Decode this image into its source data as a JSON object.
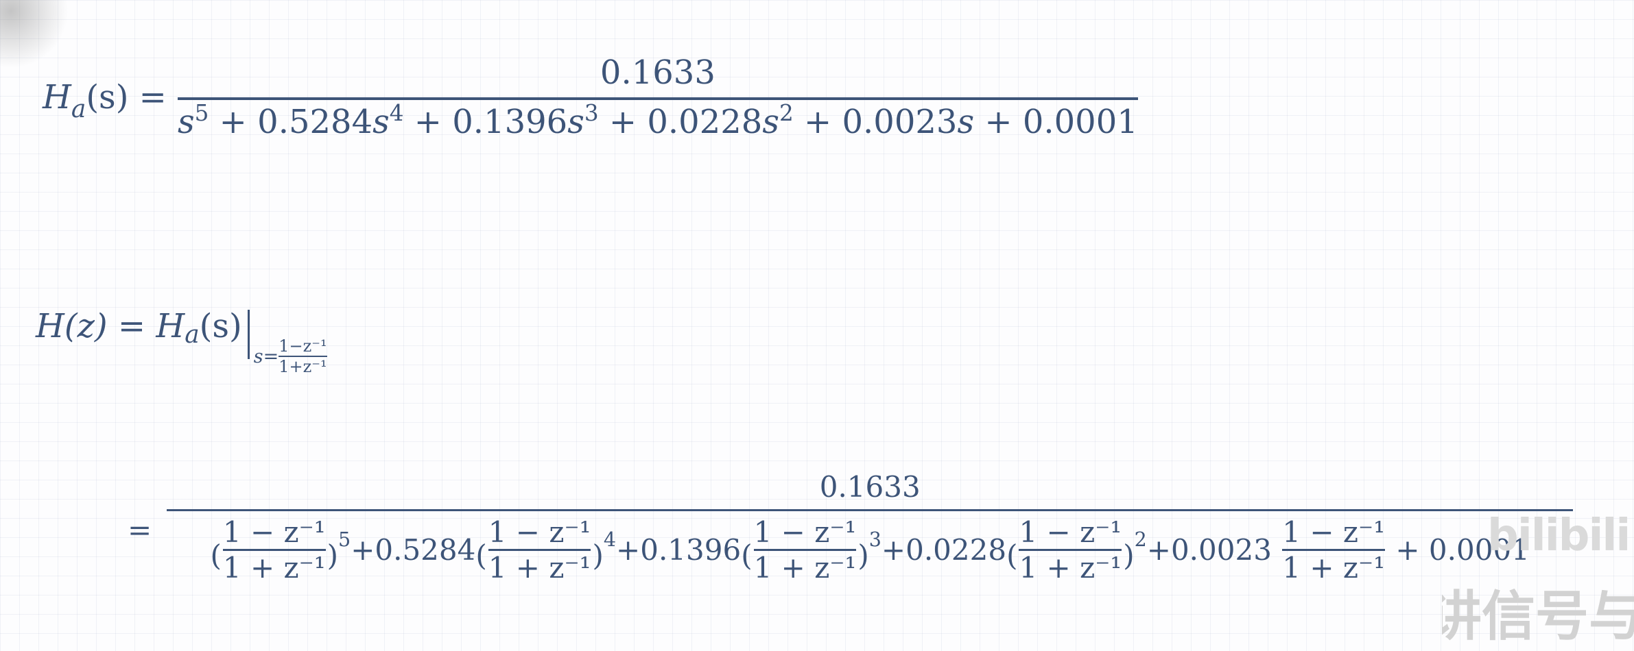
{
  "eq1": {
    "lhs_H": "H",
    "lhs_sub": "a",
    "lhs_arg": "(s) =",
    "numerator": "0.1633",
    "denominator": {
      "t1_var": "s",
      "t1_exp": "5",
      "t2_coef": "+ 0.5284",
      "t2_var": "s",
      "t2_exp": "4",
      "t3_coef": "+ 0.1396",
      "t3_var": "s",
      "t3_exp": "3",
      "t4_coef": "+ 0.0228",
      "t4_var": "s",
      "t4_exp": "2",
      "t5_coef": "+ 0.0023",
      "t5_var": "s",
      "t6_const": "+ 0.0001"
    }
  },
  "eq2": {
    "lhs": "H(z) = ",
    "H": "H",
    "sub": "a",
    "arg": "(s)",
    "eval_var": "s=",
    "eval_num": "1−z⁻¹",
    "eval_den": "1+z⁻¹"
  },
  "eq3": {
    "eq_sign": "=",
    "numerator": "0.1633",
    "frac_num": "1 − z⁻¹",
    "frac_den": "1 + z⁻¹",
    "open_paren": "(",
    "close_paren": ")",
    "exp5": "5",
    "exp4": "4",
    "exp3": "3",
    "exp2": "2",
    "c4": "+0.5284",
    "c3": "+0.1396",
    "c2": "+0.0228",
    "c1": "+0.0023",
    "c0": "+ 0.0001"
  },
  "watermark": {
    "logo": "bilibili",
    "text": "讲信号与系统"
  }
}
